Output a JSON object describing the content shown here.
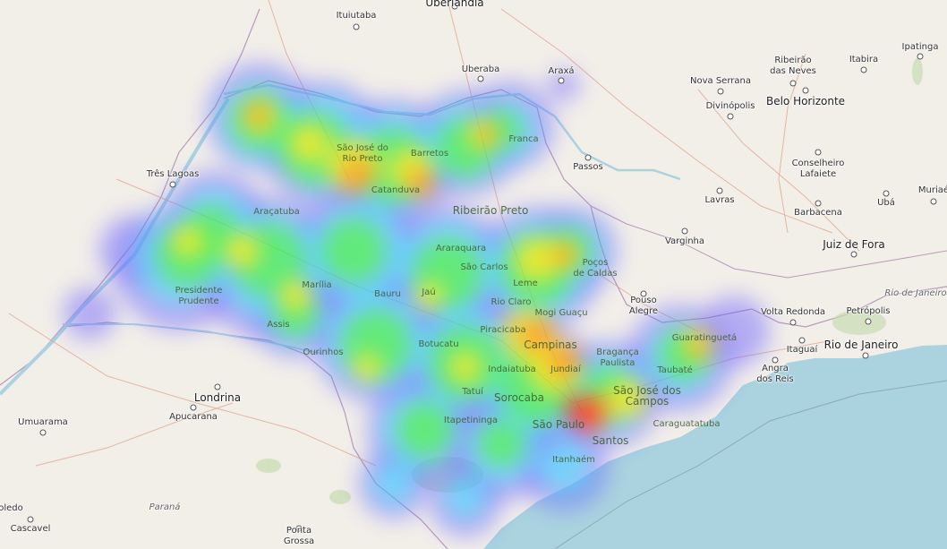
{
  "map": {
    "labels": [
      {
        "id": "uberlandia-top",
        "text": "Uberlândia",
        "cls": "big"
      },
      {
        "id": "ituiutaba",
        "text": "Ituiutaba"
      },
      {
        "id": "uberaba",
        "text": "Uberaba"
      },
      {
        "id": "araxa",
        "text": "Araxá"
      },
      {
        "id": "ribeirao-das-neves",
        "text": "Ribeirão\ndas Neves",
        "cls": "two"
      },
      {
        "id": "itabira",
        "text": "Itabira"
      },
      {
        "id": "ipatinga",
        "text": "Ipatinga"
      },
      {
        "id": "nova-serrana",
        "text": "Nova Serrana"
      },
      {
        "id": "belo-horizonte",
        "text": "Belo Horizonte",
        "cls": "big"
      },
      {
        "id": "divinopolis",
        "text": "Divinópolis"
      },
      {
        "id": "franca",
        "text": "Franca",
        "cls": "onheat"
      },
      {
        "id": "passos",
        "text": "Passos"
      },
      {
        "id": "conselheiro-lafaiete",
        "text": "Conselheiro\nLafaiete",
        "cls": "two"
      },
      {
        "id": "muriae",
        "text": "Muriaé"
      },
      {
        "id": "sao-jose-do-rio-preto",
        "text": "São José do\nRio Preto",
        "cls": "two onheat"
      },
      {
        "id": "barretos",
        "text": "Barretos",
        "cls": "onheat"
      },
      {
        "id": "tres-lagoas",
        "text": "Três Lagoas"
      },
      {
        "id": "catanduva",
        "text": "Catanduva",
        "cls": "onheat"
      },
      {
        "id": "lavras",
        "text": "Lavras"
      },
      {
        "id": "uba",
        "text": "Ubá"
      },
      {
        "id": "barbacena",
        "text": "Barbacena"
      },
      {
        "id": "aracatuba",
        "text": "Araçatuba",
        "cls": "onheat"
      },
      {
        "id": "ribeirao-preto",
        "text": "Ribeirão Preto",
        "cls": "big onheat"
      },
      {
        "id": "varginha",
        "text": "Varginha"
      },
      {
        "id": "juiz-de-fora",
        "text": "Juiz de Fora",
        "cls": "big"
      },
      {
        "id": "araraquara",
        "text": "Araraquara",
        "cls": "onheat"
      },
      {
        "id": "pocos-de-caldas",
        "text": "Poços\nde Caldas",
        "cls": "two onheat"
      },
      {
        "id": "sao-carlos",
        "text": "São Carlos",
        "cls": "onheat"
      },
      {
        "id": "presidente-prudente",
        "text": "Presidente\nPrudente",
        "cls": "two onheat"
      },
      {
        "id": "marilia",
        "text": "Marília",
        "cls": "onheat"
      },
      {
        "id": "bauru",
        "text": "Bauru",
        "cls": "onheat"
      },
      {
        "id": "jau",
        "text": "Jaú",
        "cls": "onheat"
      },
      {
        "id": "leme",
        "text": "Leme",
        "cls": "onheat"
      },
      {
        "id": "pouso-alegre",
        "text": "Pouso\nAlegre",
        "cls": "two"
      },
      {
        "id": "rio-claro",
        "text": "Rio Claro",
        "cls": "onheat"
      },
      {
        "id": "mogi-guacu",
        "text": "Mogi Guaçu",
        "cls": "onheat"
      },
      {
        "id": "rio-de-janeiro-state",
        "text": "Rio de Janeiro",
        "cls": "region"
      },
      {
        "id": "volta-redonda",
        "text": "Volta Redonda"
      },
      {
        "id": "petropolis",
        "text": "Petrópolis"
      },
      {
        "id": "assis",
        "text": "Assis",
        "cls": "onheat"
      },
      {
        "id": "piracicaba",
        "text": "Piracicaba",
        "cls": "onheat"
      },
      {
        "id": "campinas",
        "text": "Campinas",
        "cls": "big onheat"
      },
      {
        "id": "guaratingueta",
        "text": "Guaratinguetá",
        "cls": "onheat"
      },
      {
        "id": "itaguai",
        "text": "Itaguaí"
      },
      {
        "id": "rio-de-janeiro",
        "text": "Rio de Janeiro",
        "cls": "big"
      },
      {
        "id": "botucatu",
        "text": "Botucatu",
        "cls": "onheat"
      },
      {
        "id": "ourinhos",
        "text": "Ourinhos",
        "cls": "onheat"
      },
      {
        "id": "braganca-paulista",
        "text": "Bragança\nPaulista",
        "cls": "two onheat"
      },
      {
        "id": "indaiatuba",
        "text": "Indaiatuba",
        "cls": "onheat"
      },
      {
        "id": "jundiai",
        "text": "Jundiaí",
        "cls": "onheat"
      },
      {
        "id": "taubate",
        "text": "Taubaté",
        "cls": "onheat"
      },
      {
        "id": "angra-dos-reis",
        "text": "Angra\ndos Reis",
        "cls": "two"
      },
      {
        "id": "londrina",
        "text": "Londrina",
        "cls": "big"
      },
      {
        "id": "tatui",
        "text": "Tatuí",
        "cls": "onheat"
      },
      {
        "id": "sorocaba",
        "text": "Sorocaba",
        "cls": "big onheat"
      },
      {
        "id": "sao-jose-dos-campos",
        "text": "São José dos\nCampos",
        "cls": "two big onheat"
      },
      {
        "id": "umuarama",
        "text": "Umuarama"
      },
      {
        "id": "apucarana",
        "text": "Apucarana"
      },
      {
        "id": "itapetininga",
        "text": "Itapetininga",
        "cls": "onheat"
      },
      {
        "id": "sao-paulo",
        "text": "São Paulo",
        "cls": "big onheat"
      },
      {
        "id": "caraguatatuba",
        "text": "Caraguatatuba",
        "cls": "onheat"
      },
      {
        "id": "santos",
        "text": "Santos",
        "cls": "big onheat"
      },
      {
        "id": "itanhaem",
        "text": "Itanhaém",
        "cls": "onheat"
      },
      {
        "id": "toledo",
        "text": "oledo"
      },
      {
        "id": "parana",
        "text": "Paraná",
        "cls": "region"
      },
      {
        "id": "cascavel",
        "text": "Cascavel"
      },
      {
        "id": "ponta-grossa",
        "text": "Ponta\nGrossa",
        "cls": "two"
      }
    ]
  }
}
